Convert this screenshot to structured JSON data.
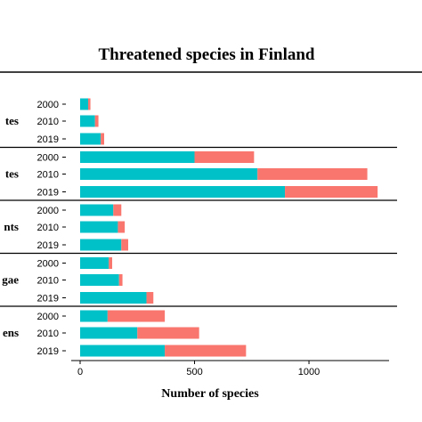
{
  "chart_data": {
    "type": "bar",
    "orientation": "horizontal",
    "stacked": true,
    "title": "Threatened species in Finland",
    "xlabel": "Number of species",
    "xlim": [
      0,
      1350
    ],
    "xticks": [
      0,
      500,
      1000
    ],
    "years": [
      "2000",
      "2010",
      "2019"
    ],
    "colors": [
      "#00C1C8",
      "#F8766D"
    ],
    "groups": [
      {
        "label": "tes",
        "seg1": [
          35,
          65,
          90
        ],
        "seg2": [
          10,
          15,
          15
        ]
      },
      {
        "label": "tes",
        "seg1": [
          500,
          775,
          895
        ],
        "seg2": [
          260,
          480,
          405
        ]
      },
      {
        "label": "nts",
        "seg1": [
          145,
          165,
          180
        ],
        "seg2": [
          35,
          30,
          30
        ]
      },
      {
        "label": "gae",
        "seg1": [
          125,
          170,
          290
        ],
        "seg2": [
          15,
          15,
          30
        ]
      },
      {
        "label": "ens",
        "seg1": [
          120,
          250,
          370
        ],
        "seg2": [
          250,
          270,
          355
        ]
      }
    ]
  }
}
